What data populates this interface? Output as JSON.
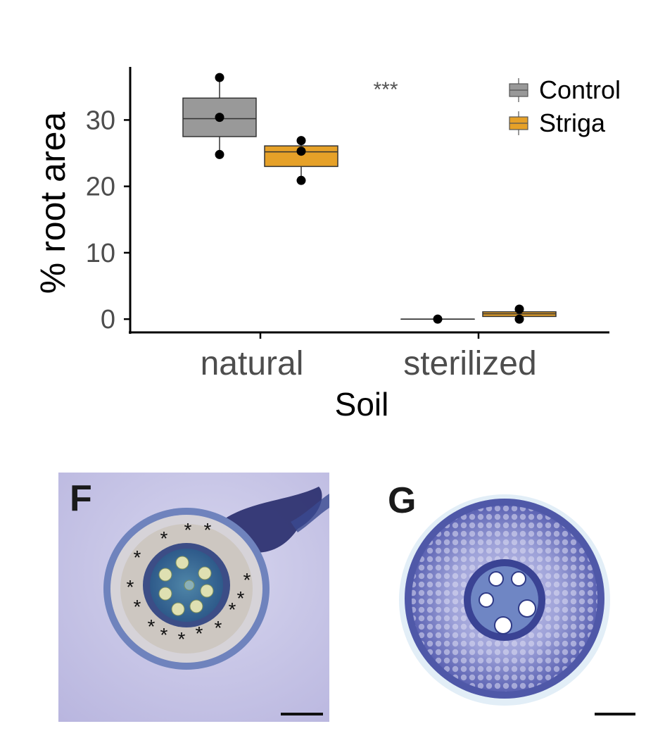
{
  "chart_data": {
    "type": "box",
    "title": "",
    "xlabel": "Soil",
    "ylabel": "% root area",
    "categories": [
      "natural",
      "sterilized"
    ],
    "y_ticks": [
      0,
      10,
      20,
      30
    ],
    "ylim": [
      -2,
      38
    ],
    "grid": false,
    "legend_position": "top-right",
    "annotation": "***",
    "series": [
      {
        "name": "Control",
        "color": "#999999",
        "boxes": [
          {
            "category": "natural",
            "q1": 27.5,
            "median": 30.2,
            "q3": 33.3,
            "whisker_low": 24.8,
            "whisker_high": 36.4,
            "points": [
              36.4,
              30.4,
              24.8
            ]
          },
          {
            "category": "sterilized",
            "q1": 0,
            "median": 0,
            "q3": 0,
            "whisker_low": 0,
            "whisker_high": 0,
            "points": [
              0
            ]
          }
        ]
      },
      {
        "name": "Striga",
        "color": "#E6A128",
        "boxes": [
          {
            "category": "natural",
            "q1": 23.0,
            "median": 25.2,
            "q3": 26.1,
            "whisker_low": 20.9,
            "whisker_high": 26.9,
            "points": [
              26.9,
              25.3,
              20.9
            ]
          },
          {
            "category": "sterilized",
            "q1": 0.4,
            "median": 0.8,
            "q3": 1.1,
            "whisker_low": 0.0,
            "whisker_high": 1.5,
            "points": [
              1.5,
              0.0
            ]
          }
        ]
      }
    ]
  },
  "panels": {
    "f": {
      "letter": "F",
      "asterisk": "*"
    },
    "g": {
      "letter": "G"
    }
  }
}
